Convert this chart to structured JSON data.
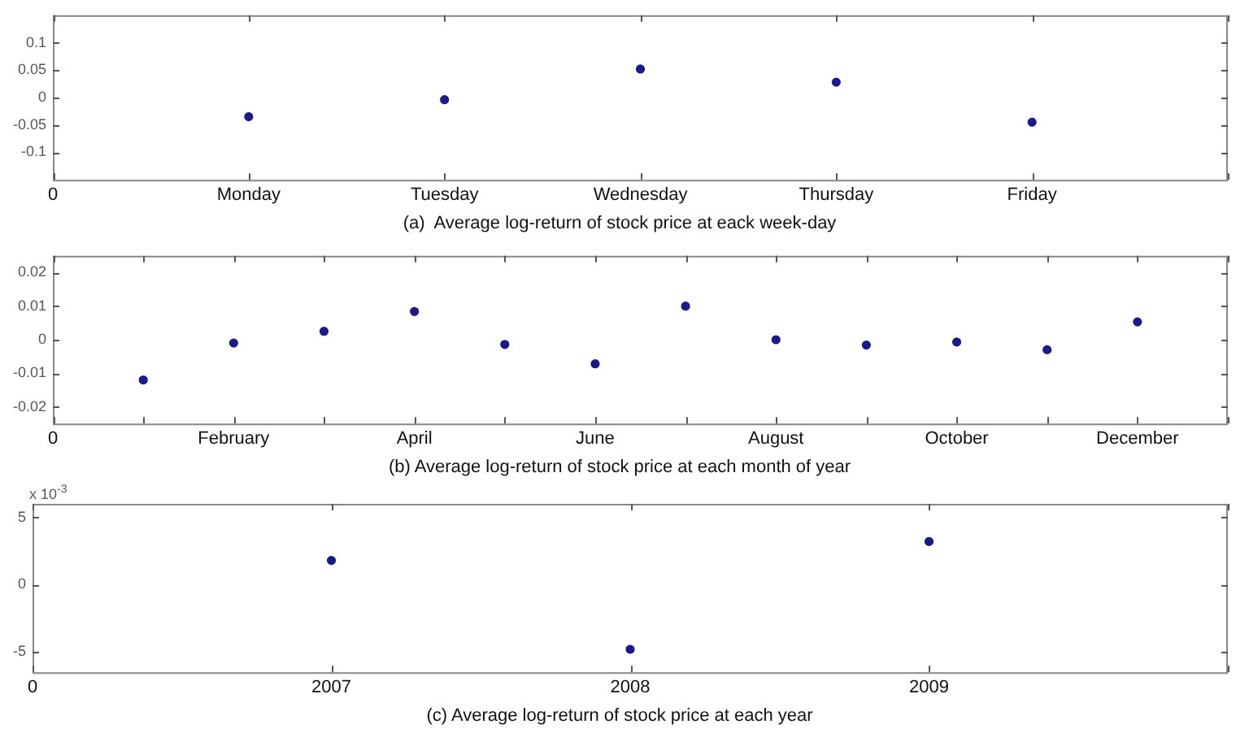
{
  "chart_data": [
    {
      "type": "scatter",
      "title": "(a)  Average log-return of stock price at eack week-day",
      "categories": [
        "0",
        "Monday",
        "Tuesday",
        "Wednesday",
        "Thursday",
        "Friday",
        null
      ],
      "values": [
        null,
        -0.035,
        -0.004,
        0.052,
        0.028,
        -0.045,
        null
      ],
      "color": "#1a1a8c",
      "marker": "circle",
      "ylim": [
        -0.15,
        0.15
      ],
      "yticks": [
        -0.1,
        -0.05,
        0,
        0.05,
        0.1
      ]
    },
    {
      "type": "scatter",
      "title": "(b) Average log-return of stock price at each month of year",
      "categories": [
        "0",
        null,
        "February",
        null,
        "April",
        null,
        "June",
        null,
        "August",
        null,
        "October",
        null,
        "December",
        null
      ],
      "values": [
        null,
        -0.012,
        -0.001,
        0.0025,
        0.0084,
        -0.0014,
        -0.0072,
        0.01,
        0,
        -0.0016,
        -0.0007,
        -0.003,
        0.0053,
        null
      ],
      "color": "#1a1a8c",
      "marker": "circle",
      "ylim": [
        -0.025,
        0.025
      ],
      "yticks": [
        -0.02,
        -0.01,
        0,
        0.01,
        0.02
      ]
    },
    {
      "type": "scatter",
      "title": "(c) Average log-return of stock price at each year",
      "categories": [
        "0",
        "2007",
        "2008",
        "2009",
        null
      ],
      "values": [
        null,
        1.8,
        -4.8,
        3.2,
        null
      ],
      "color": "#1a1a8c",
      "marker": "circle",
      "ylim": [
        -6.5,
        6
      ],
      "yticks": [
        -5,
        0,
        5
      ],
      "annotations": [
        "x 10$^{-3}$"
      ]
    }
  ]
}
